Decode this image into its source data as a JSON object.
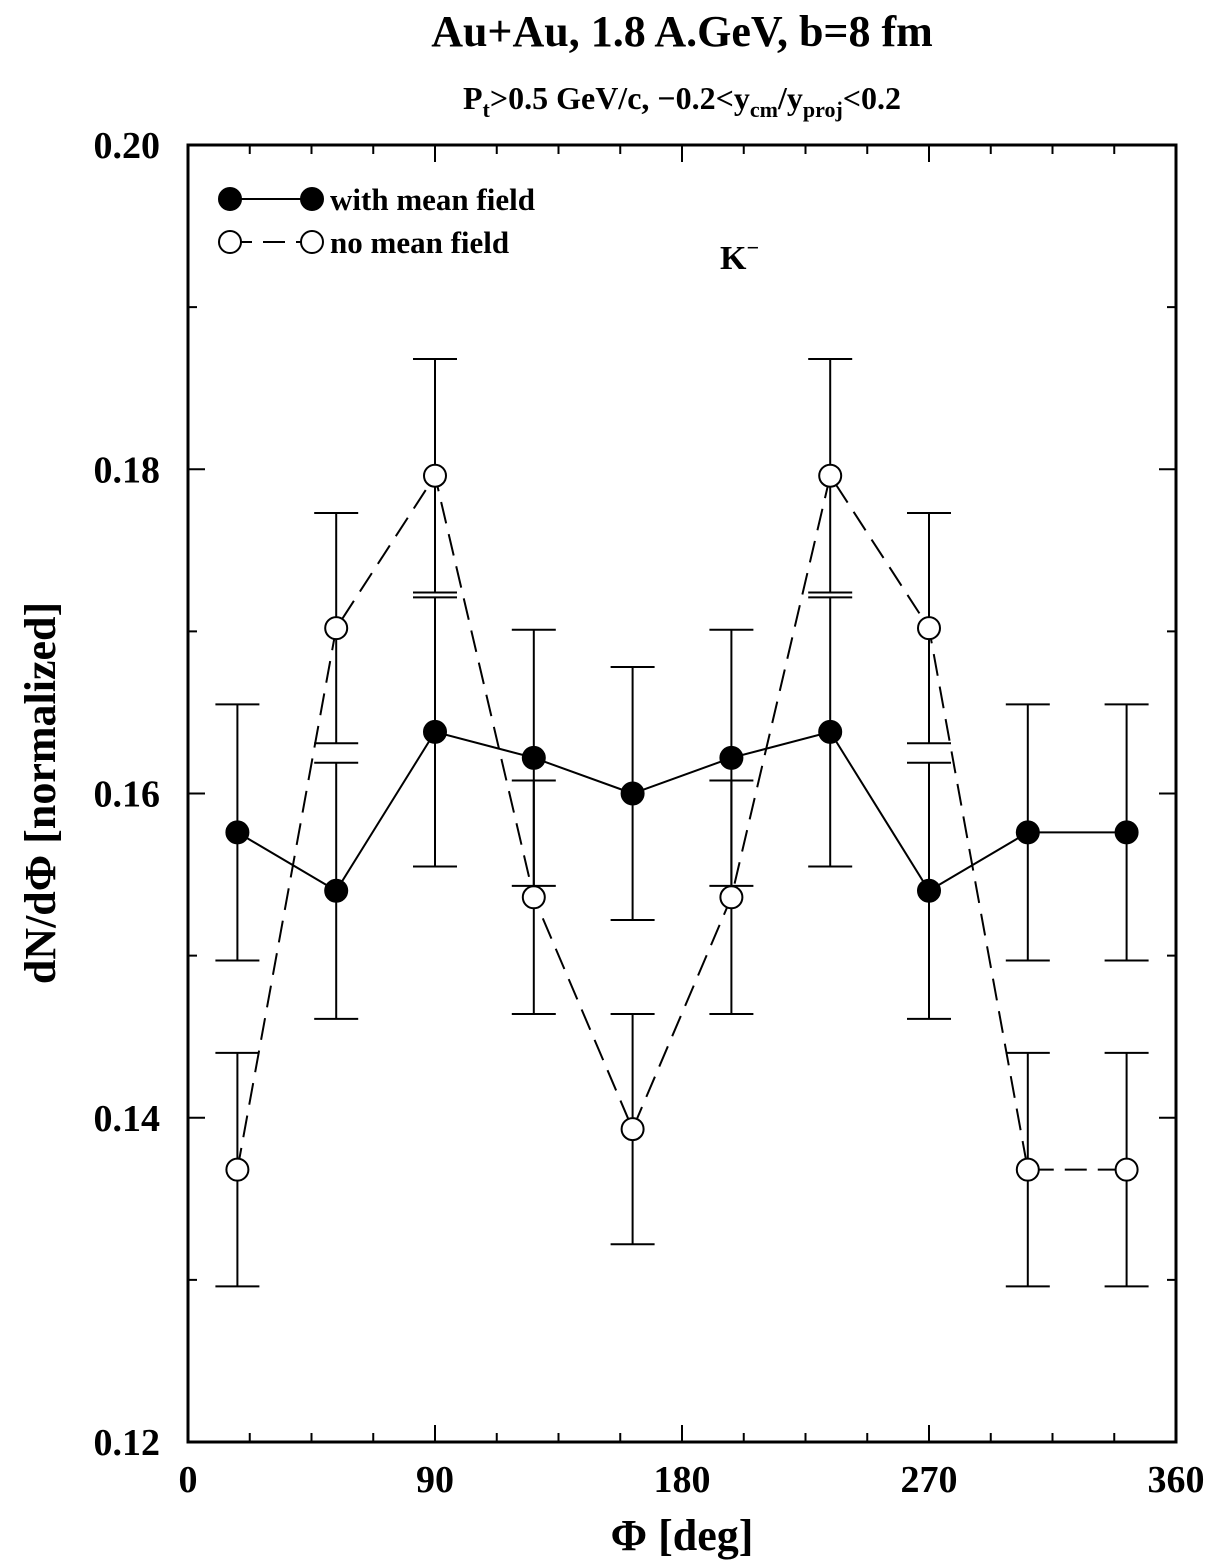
{
  "title": {
    "main": "Au+Au, 1.8 A.GeV, b=8 fm",
    "sub_pt": "P",
    "sub_pt_index": "t",
    "sub_mid": ">0.5 GeV/c, −0.2<y",
    "sub_cm": "cm",
    "sub_slash": "/y",
    "sub_proj": "proj",
    "sub_end": "<0.2"
  },
  "annotation": {
    "base": "K",
    "sup": "−"
  },
  "chart_data": {
    "type": "scatter",
    "xlabel": "Φ [deg]",
    "ylabel": "dN/dΦ [normalized]",
    "xlim": [
      0,
      360
    ],
    "ylim": [
      0.12,
      0.2
    ],
    "xticks": [
      0,
      90,
      180,
      270,
      360
    ],
    "xtick_labels": [
      "0",
      "90",
      "180",
      "270",
      "360"
    ],
    "yticks": [
      0.12,
      0.14,
      0.16,
      0.18,
      0.2
    ],
    "ytick_labels": [
      "0.12",
      "0.14",
      "0.16",
      "0.18",
      "0.20"
    ],
    "x": [
      18,
      54,
      90,
      126,
      162,
      198,
      234,
      270,
      306,
      342
    ],
    "legend_position": "top-left",
    "grid": false,
    "series": [
      {
        "name": "with mean field",
        "marker": "filled-circle",
        "line": "solid",
        "color": "#000000",
        "y": [
          0.1576,
          0.154,
          0.1638,
          0.1622,
          0.16,
          0.1622,
          0.1638,
          0.154,
          0.1576,
          0.1576
        ],
        "yerr": [
          0.0079,
          0.0079,
          0.0083,
          0.0079,
          0.0078,
          0.0079,
          0.0083,
          0.0079,
          0.0079,
          0.0079
        ]
      },
      {
        "name": "no mean field",
        "marker": "open-circle",
        "line": "dashed",
        "color": "#000000",
        "y": [
          0.1368,
          0.1702,
          0.1796,
          0.1536,
          0.1393,
          0.1536,
          0.1796,
          0.1702,
          0.1368,
          0.1368
        ],
        "yerr": [
          0.0072,
          0.0071,
          0.0072,
          0.0072,
          0.0071,
          0.0072,
          0.0072,
          0.0071,
          0.0072,
          0.0072
        ]
      }
    ]
  }
}
